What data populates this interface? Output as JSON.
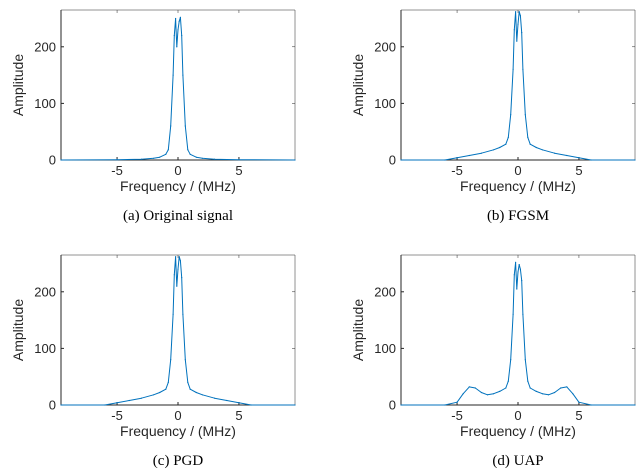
{
  "chart_data": [
    {
      "type": "line",
      "caption": "(a)  Original signal",
      "xlabel": "Frequency / (MHz)",
      "ylabel": "Amplitude",
      "xlim": [
        -9.6,
        9.6
      ],
      "ylim": [
        0,
        265
      ],
      "xticks": [
        "-5",
        "0",
        "5"
      ],
      "yticks": [
        "0",
        "100",
        "200"
      ],
      "grid": false,
      "color": "#0072BD",
      "series": [
        {
          "x": [
            -9.6,
            -5,
            -3,
            -2,
            -1.5,
            -1,
            -0.8,
            -0.6,
            -0.4,
            -0.3,
            -0.2,
            -0.1,
            0,
            0.1,
            0.2,
            0.3,
            0.4,
            0.6,
            0.8,
            1,
            1.5,
            2,
            3,
            5,
            9.6
          ],
          "y": [
            0,
            0.5,
            1.5,
            3,
            5,
            10,
            18,
            60,
            150,
            220,
            250,
            200,
            230,
            245,
            252,
            220,
            150,
            60,
            18,
            10,
            5,
            3,
            1.5,
            0.5,
            0
          ]
        }
      ]
    },
    {
      "type": "line",
      "caption": "(b)  FGSM",
      "xlabel": "Frequency / (MHz)",
      "ylabel": "Amplitude",
      "xlim": [
        -9.6,
        9.6
      ],
      "ylim": [
        0,
        265
      ],
      "xticks": [
        "-5",
        "0",
        "5"
      ],
      "yticks": [
        "0",
        "100",
        "200"
      ],
      "grid": false,
      "color": "#0072BD",
      "series": [
        {
          "x": [
            -9.6,
            -6,
            -5,
            -4,
            -3,
            -2,
            -1.5,
            -1,
            -0.8,
            -0.6,
            -0.4,
            -0.3,
            -0.2,
            -0.1,
            0,
            0.1,
            0.2,
            0.3,
            0.4,
            0.6,
            0.8,
            1,
            1.5,
            2,
            3,
            4,
            5,
            6,
            9.6
          ],
          "y": [
            0,
            0,
            4,
            8,
            12,
            18,
            22,
            28,
            40,
            80,
            160,
            230,
            262,
            210,
            240,
            262,
            255,
            225,
            160,
            80,
            40,
            28,
            22,
            18,
            12,
            8,
            4,
            0,
            0
          ]
        }
      ]
    },
    {
      "type": "line",
      "caption": "(c)  PGD",
      "xlabel": "Frequency / (MHz)",
      "ylabel": "Amplitude",
      "xlim": [
        -9.6,
        9.6
      ],
      "ylim": [
        0,
        265
      ],
      "xticks": [
        "-5",
        "0",
        "5"
      ],
      "yticks": [
        "0",
        "100",
        "200"
      ],
      "grid": false,
      "color": "#0072BD",
      "series": [
        {
          "x": [
            -9.6,
            -6,
            -5,
            -4,
            -3,
            -2,
            -1.5,
            -1,
            -0.8,
            -0.6,
            -0.4,
            -0.3,
            -0.2,
            -0.1,
            0,
            0.1,
            0.2,
            0.3,
            0.4,
            0.6,
            0.8,
            1,
            1.5,
            2,
            3,
            4,
            5,
            6,
            9.6
          ],
          "y": [
            0,
            0,
            4,
            8,
            12,
            18,
            22,
            28,
            40,
            80,
            160,
            230,
            262,
            210,
            240,
            262,
            255,
            225,
            160,
            80,
            40,
            28,
            22,
            18,
            12,
            8,
            4,
            0,
            0
          ]
        }
      ]
    },
    {
      "type": "line",
      "caption": "(d)  UAP",
      "xlabel": "Frequency / (MHz)",
      "ylabel": "Amplitude",
      "xlim": [
        -9.6,
        9.6
      ],
      "ylim": [
        0,
        265
      ],
      "xticks": [
        "-5",
        "0",
        "5"
      ],
      "yticks": [
        "0",
        "100",
        "200"
      ],
      "grid": false,
      "color": "#0072BD",
      "series": [
        {
          "x": [
            -9.6,
            -6,
            -5,
            -4.5,
            -4,
            -3.5,
            -3,
            -2.5,
            -2,
            -1.5,
            -1,
            -0.8,
            -0.6,
            -0.4,
            -0.3,
            -0.2,
            -0.1,
            0,
            0.1,
            0.2,
            0.3,
            0.4,
            0.6,
            0.8,
            1,
            1.5,
            2,
            2.5,
            3,
            3.5,
            4,
            4.5,
            5,
            6,
            9.6
          ],
          "y": [
            0,
            0,
            5,
            20,
            32,
            30,
            22,
            18,
            20,
            24,
            30,
            42,
            80,
            160,
            230,
            252,
            205,
            235,
            248,
            240,
            220,
            160,
            80,
            42,
            30,
            24,
            20,
            18,
            22,
            30,
            32,
            20,
            5,
            0,
            0
          ]
        }
      ]
    }
  ]
}
